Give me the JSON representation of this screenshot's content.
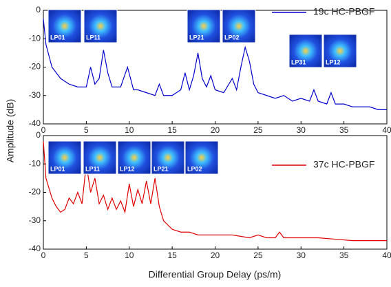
{
  "chart_data": [
    {
      "type": "line",
      "ylabel": "Amplitude (dB)",
      "x": [
        0,
        0.3,
        1,
        2,
        3,
        4,
        5,
        5.5,
        6,
        6.5,
        7,
        7.5,
        8,
        9,
        9.8,
        10.5,
        11,
        12,
        13,
        13.5,
        14,
        15,
        16,
        16.5,
        17,
        17.5,
        18,
        18.5,
        19,
        19.5,
        20,
        21,
        22,
        22.5,
        23,
        23.5,
        24,
        24.5,
        25,
        26,
        27,
        28,
        29,
        30,
        31,
        31.5,
        32,
        33,
        33.5,
        34,
        35,
        36,
        37,
        38,
        39,
        40
      ],
      "series": [
        {
          "name": "19c HC-PBGF",
          "color": "#0000cc",
          "values": [
            -3,
            -12,
            -20,
            -24,
            -26,
            -27,
            -27,
            -20,
            -26,
            -24,
            -14,
            -22,
            -27,
            -27,
            -20,
            -28,
            -28,
            -29,
            -30,
            -26,
            -30,
            -30,
            -28,
            -22,
            -28,
            -23,
            -15,
            -24,
            -27,
            -23,
            -28,
            -29,
            -24,
            -28,
            -20,
            -13,
            -18,
            -26,
            -29,
            -30,
            -31,
            -30,
            -32,
            -31,
            -32,
            -28,
            -32,
            -33,
            -29,
            -33,
            -33,
            -34,
            -34,
            -34,
            -35,
            -35
          ]
        }
      ],
      "annotations": [
        "LP01",
        "LP11",
        "LP21",
        "LP02",
        "LP31",
        "LP12"
      ],
      "xlim": [
        0,
        40
      ],
      "xticks": [
        0,
        5,
        10,
        15,
        20,
        25,
        30,
        35,
        40
      ],
      "ylim": [
        -40,
        0
      ],
      "yticks": [
        0,
        -10,
        -20,
        -30,
        -40
      ]
    },
    {
      "type": "line",
      "xlabel": "Differential Group Delay (ps/m)",
      "x": [
        0,
        0.3,
        1,
        1.5,
        2,
        2.5,
        3,
        3.5,
        4,
        4.5,
        5,
        5.5,
        6,
        6.5,
        7,
        7.5,
        8,
        8.5,
        9,
        9.5,
        10,
        10.5,
        11,
        11.5,
        12,
        12.5,
        13,
        13.5,
        14,
        15,
        16,
        17,
        18,
        19,
        20,
        22,
        24,
        25,
        26,
        27,
        27.5,
        28,
        30,
        32,
        34,
        36,
        38,
        40
      ],
      "series": [
        {
          "name": "37c HC-PBGF",
          "color": "#e00000",
          "values": [
            -2,
            -15,
            -22,
            -25,
            -27,
            -26,
            -22,
            -24,
            -20,
            -24,
            -10,
            -20,
            -15,
            -24,
            -21,
            -26,
            -22,
            -26,
            -23,
            -27,
            -17,
            -25,
            -19,
            -24,
            -16,
            -24,
            -15,
            -25,
            -30,
            -33,
            -34,
            -34,
            -35,
            -35,
            -35,
            -35,
            -36,
            -35,
            -36,
            -36,
            -34,
            -36,
            -36,
            -36,
            -36.5,
            -37,
            -37,
            -37
          ]
        }
      ],
      "annotations": [
        "LP01",
        "LP11",
        "LP12",
        "LP21",
        "LP02"
      ],
      "xlim": [
        0,
        40
      ],
      "xticks": [
        0,
        5,
        10,
        15,
        20,
        25,
        30,
        35,
        40
      ],
      "ylim": [
        -40,
        0
      ],
      "yticks": [
        0,
        -10,
        -20,
        -30,
        -40
      ]
    }
  ]
}
